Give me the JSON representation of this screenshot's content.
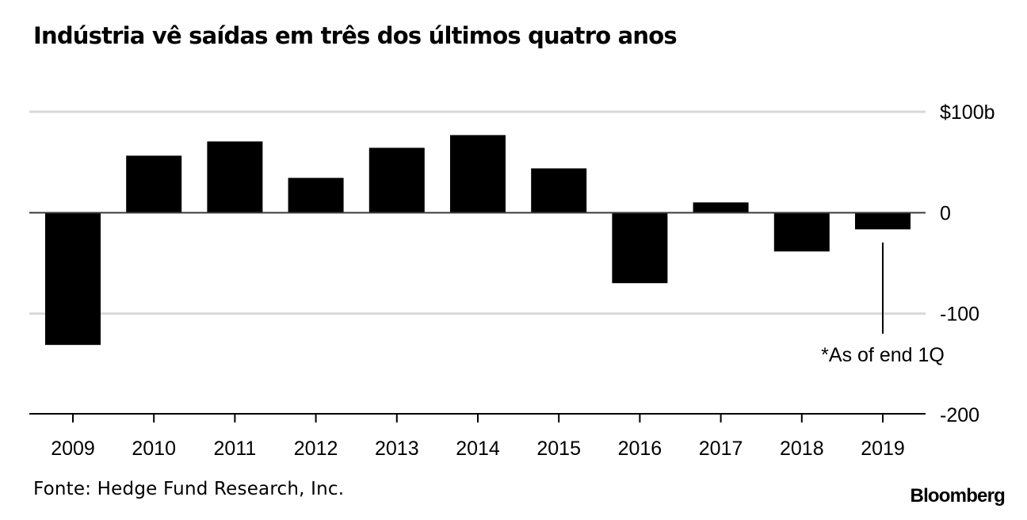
{
  "chart_data": {
    "type": "bar",
    "title": "Indústria vê saídas em três dos últimos quatro anos",
    "xlabel": "",
    "ylabel": "",
    "categories": [
      "2009",
      "2010",
      "2011",
      "2012",
      "2013",
      "2014",
      "2015",
      "2016",
      "2017",
      "2018",
      "2019"
    ],
    "values": [
      -131,
      56.5,
      70.6,
      34.5,
      64.3,
      76.9,
      43.9,
      -69.8,
      10.2,
      -38.4,
      -16.5
    ],
    "ylim": [
      -200,
      100
    ],
    "yticks": [
      100,
      0,
      -100,
      -200
    ],
    "ytick_labels": [
      "$100b",
      "0",
      "-100",
      "-200"
    ],
    "grid": true,
    "bar_color": "#000000",
    "grid_color": "#d9d9d9",
    "annotation": {
      "text": "*As of end 1Q",
      "category": "2019"
    }
  },
  "footer": {
    "source": "Fonte: Hedge Fund Research, Inc.",
    "logo": "Bloomberg"
  }
}
